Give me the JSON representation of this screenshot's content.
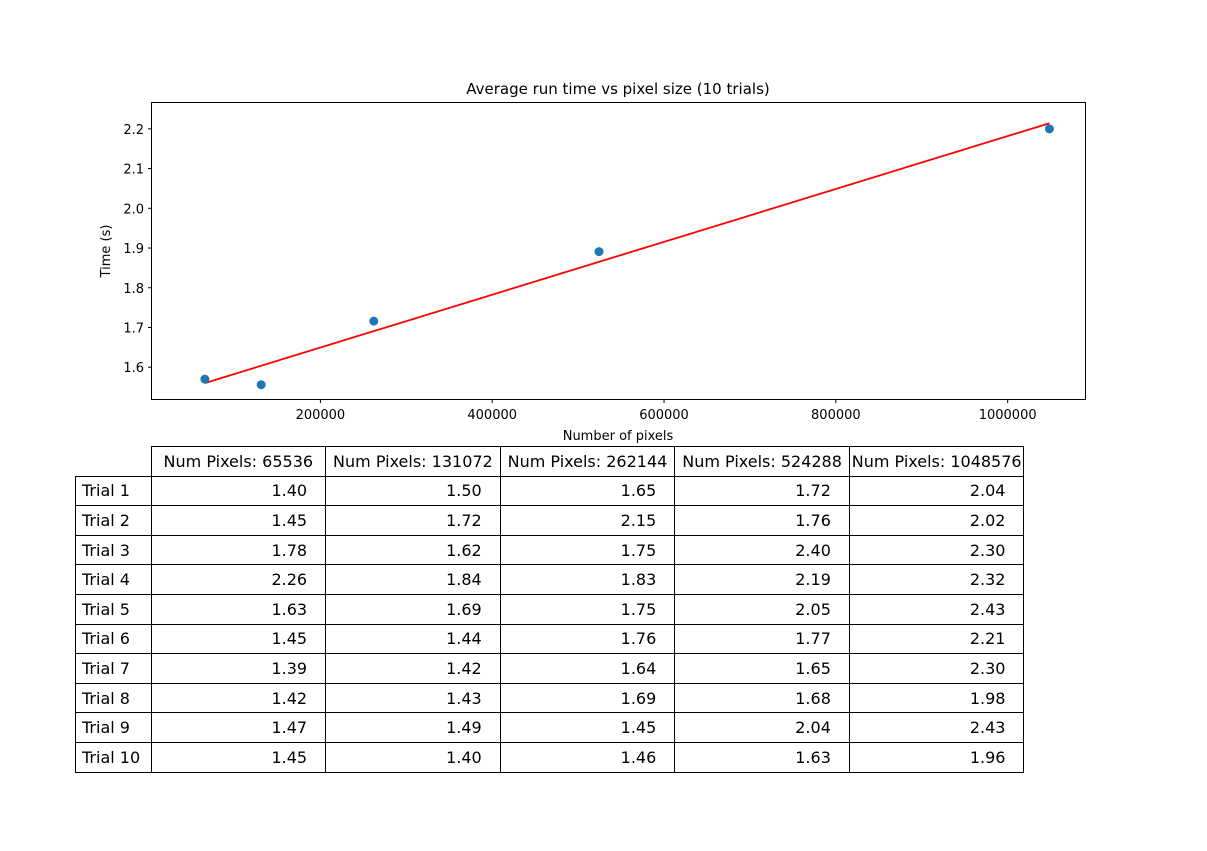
{
  "chart_data": {
    "type": "scatter",
    "title": "Average run time vs pixel size (10 trials)",
    "xlabel": "Number of pixels",
    "ylabel": "Time (s)",
    "xlim": [
      4000,
      1090000
    ],
    "ylim": [
      1.52,
      2.265
    ],
    "xticks": [
      200000,
      400000,
      600000,
      800000,
      1000000
    ],
    "xtick_labels": [
      "200000",
      "400000",
      "600000",
      "800000",
      "1000000"
    ],
    "yticks": [
      1.6,
      1.7,
      1.8,
      1.9,
      2.0,
      2.1,
      2.2
    ],
    "ytick_labels": [
      "1.6",
      "1.7",
      "1.8",
      "1.9",
      "2.0",
      "2.1",
      "2.2"
    ],
    "grid": false,
    "series": [
      {
        "kind": "points",
        "color": "#1f77b4",
        "x": [
          65536,
          131072,
          262144,
          524288,
          1048576
        ],
        "y": [
          1.57,
          1.556,
          1.716,
          1.891,
          2.2
        ]
      },
      {
        "kind": "fit-line",
        "color": "#ff0000",
        "x": [
          65536,
          1048576
        ],
        "y": [
          1.56,
          2.214
        ]
      }
    ]
  },
  "table": {
    "columns": [
      "Num Pixels: 65536",
      "Num Pixels: 131072",
      "Num Pixels: 262144",
      "Num Pixels: 524288",
      "Num Pixels: 1048576"
    ],
    "rows": [
      {
        "label": "Trial 1",
        "values": [
          "1.40",
          "1.50",
          "1.65",
          "1.72",
          "2.04"
        ]
      },
      {
        "label": "Trial 2",
        "values": [
          "1.45",
          "1.72",
          "2.15",
          "1.76",
          "2.02"
        ]
      },
      {
        "label": "Trial 3",
        "values": [
          "1.78",
          "1.62",
          "1.75",
          "2.40",
          "2.30"
        ]
      },
      {
        "label": "Trial 4",
        "values": [
          "2.26",
          "1.84",
          "1.83",
          "2.19",
          "2.32"
        ]
      },
      {
        "label": "Trial 5",
        "values": [
          "1.63",
          "1.69",
          "1.75",
          "2.05",
          "2.43"
        ]
      },
      {
        "label": "Trial 6",
        "values": [
          "1.45",
          "1.44",
          "1.76",
          "1.77",
          "2.21"
        ]
      },
      {
        "label": "Trial 7",
        "values": [
          "1.39",
          "1.42",
          "1.64",
          "1.65",
          "2.30"
        ]
      },
      {
        "label": "Trial 8",
        "values": [
          "1.42",
          "1.43",
          "1.69",
          "1.68",
          "1.98"
        ]
      },
      {
        "label": "Trial 9",
        "values": [
          "1.47",
          "1.49",
          "1.45",
          "2.04",
          "2.43"
        ]
      },
      {
        "label": "Trial 10",
        "values": [
          "1.45",
          "1.40",
          "1.46",
          "1.63",
          "1.96"
        ]
      }
    ]
  }
}
